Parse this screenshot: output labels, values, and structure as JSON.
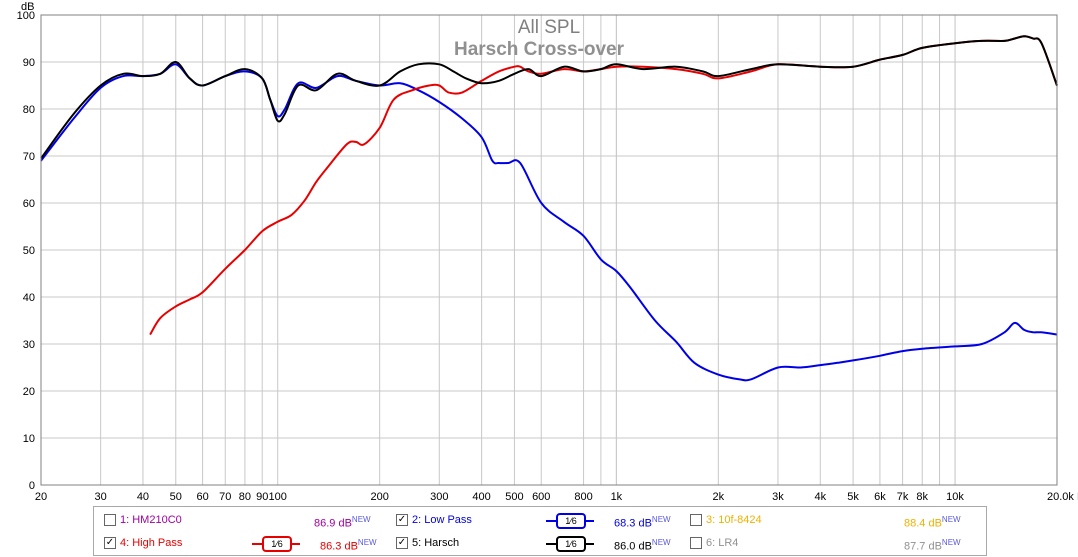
{
  "chart_data": {
    "type": "line",
    "title": "All SPL",
    "subtitle": "Harsch Cross-over",
    "ylabel": "dB",
    "xlabel": "Hz",
    "xscale": "log",
    "xlim": [
      20,
      20000
    ],
    "ylim": [
      0,
      100
    ],
    "grid": true,
    "yticks": [
      0,
      10,
      20,
      30,
      40,
      50,
      60,
      70,
      80,
      90,
      100
    ],
    "xticks": [
      {
        "v": 20,
        "label": "20"
      },
      {
        "v": 30,
        "label": "30"
      },
      {
        "v": 40,
        "label": "40"
      },
      {
        "v": 50,
        "label": "50"
      },
      {
        "v": 60,
        "label": "60"
      },
      {
        "v": 70,
        "label": "70"
      },
      {
        "v": 80,
        "label": "80"
      },
      {
        "v": 90,
        "label": "90"
      },
      {
        "v": 100,
        "label": "100"
      },
      {
        "v": 200,
        "label": "200"
      },
      {
        "v": 300,
        "label": "300"
      },
      {
        "v": 400,
        "label": "400"
      },
      {
        "v": 500,
        "label": "500"
      },
      {
        "v": 600,
        "label": "600"
      },
      {
        "v": 800,
        "label": "800"
      },
      {
        "v": 1000,
        "label": "1k"
      },
      {
        "v": 2000,
        "label": "2k"
      },
      {
        "v": 3000,
        "label": "3k"
      },
      {
        "v": 4000,
        "label": "4k"
      },
      {
        "v": 5000,
        "label": "5k"
      },
      {
        "v": 6000,
        "label": "6k"
      },
      {
        "v": 7000,
        "label": "7k"
      },
      {
        "v": 8000,
        "label": "8k"
      },
      {
        "v": 10000,
        "label": "10k"
      },
      {
        "v": 20000,
        "label": "20.0k Hz"
      }
    ],
    "minor_xgrid": [
      900,
      1000,
      9000,
      10000
    ],
    "series": [
      {
        "name": "Low Pass",
        "color": "#0000e8",
        "x": [
          20,
          25,
          30,
          35,
          40,
          45,
          50,
          55,
          60,
          70,
          80,
          90,
          95,
          100,
          105,
          115,
          130,
          150,
          170,
          200,
          230,
          260,
          300,
          350,
          400,
          430,
          450,
          480,
          520,
          600,
          700,
          800,
          900,
          1000,
          1100,
          1300,
          1500,
          1700,
          2000,
          2300,
          2500,
          3000,
          3500,
          4000,
          4500,
          5000,
          6000,
          7000,
          8000,
          10000,
          12000,
          14000,
          15000,
          16000,
          17000,
          18000,
          20000
        ],
        "y": [
          69,
          78,
          84.5,
          87,
          87,
          87.5,
          89.5,
          86.5,
          85,
          87,
          88,
          86.5,
          82,
          78.5,
          80,
          85.5,
          84.5,
          87,
          86,
          85,
          85.5,
          84,
          81.5,
          78,
          74,
          69,
          68.5,
          68.5,
          68.5,
          60,
          56,
          53,
          48,
          45.5,
          42,
          35,
          30.5,
          26,
          23.5,
          22.5,
          22.5,
          25,
          25,
          25.5,
          26,
          26.5,
          27.5,
          28.5,
          29,
          29.5,
          30,
          32.5,
          34.5,
          33,
          32.5,
          32.5,
          32
        ]
      },
      {
        "name": "High Pass",
        "color": "#e80000",
        "x": [
          42,
          45,
          50,
          55,
          60,
          70,
          80,
          90,
          100,
          110,
          120,
          130,
          140,
          160,
          170,
          180,
          200,
          220,
          250,
          280,
          300,
          320,
          350,
          400,
          450,
          500,
          520,
          550,
          600,
          700,
          800,
          900,
          1000,
          1200,
          1500,
          1800,
          2000,
          2500,
          3000,
          4000,
          5000,
          6000,
          7000,
          8000,
          10000,
          12000,
          14000,
          15000,
          16000,
          17000,
          18000,
          20000
        ],
        "y": [
          32,
          35.5,
          38,
          39.5,
          41,
          46,
          50,
          54,
          56,
          57.5,
          60.5,
          64.5,
          67.5,
          72.5,
          73,
          72.5,
          76,
          82,
          84,
          85,
          85,
          83.5,
          83.5,
          86,
          88,
          89,
          89,
          88,
          87.5,
          88.5,
          88,
          88.5,
          89,
          89,
          88.5,
          87.5,
          86.5,
          88,
          89.5,
          89,
          89,
          90.5,
          91.5,
          93,
          94,
          94.5,
          94.5,
          95,
          95.5,
          95,
          94,
          85
        ]
      },
      {
        "name": "Harsch",
        "color": "#000000",
        "x": [
          20,
          25,
          30,
          35,
          40,
          45,
          50,
          55,
          60,
          70,
          80,
          90,
          95,
          100,
          105,
          115,
          130,
          150,
          170,
          200,
          230,
          260,
          300,
          330,
          360,
          400,
          450,
          500,
          550,
          600,
          700,
          800,
          900,
          1000,
          1200,
          1500,
          1800,
          2000,
          2500,
          3000,
          4000,
          5000,
          6000,
          7000,
          8000,
          10000,
          12000,
          14000,
          15000,
          16000,
          17000,
          18000,
          20000
        ],
        "y": [
          69.5,
          79,
          85,
          87.5,
          87,
          87.5,
          90,
          86.5,
          85,
          87,
          88.5,
          86.5,
          82,
          77.5,
          79,
          85,
          84,
          87.5,
          86,
          85,
          88,
          89.5,
          89.5,
          88,
          86.5,
          85.5,
          86,
          87.5,
          88.5,
          87,
          89,
          88,
          88.5,
          89.5,
          88.5,
          89,
          88,
          87,
          88.5,
          89.5,
          89,
          89,
          90.5,
          91.5,
          93,
          94,
          94.5,
          94.5,
          95,
          95.5,
          95,
          94,
          85
        ]
      }
    ]
  },
  "legend": {
    "row1": {
      "a": {
        "label": "1: HM210C0",
        "value": "86.9 dB",
        "new": "NEW",
        "color": "#a000a0",
        "checked": ""
      },
      "b": {
        "label": "2: Low Pass",
        "value": "68.3 dB",
        "new": "NEW",
        "color": "#0000e8",
        "checked": "✓",
        "smooth": "1⁄6"
      },
      "c": {
        "label": "3: 10f-8424",
        "value": "88.4 dB",
        "new": "NEW",
        "color": "#f0b000",
        "checked": ""
      }
    },
    "row2": {
      "a": {
        "label": "4: High Pass",
        "value": "86.3 dB",
        "new": "NEW",
        "color": "#e80000",
        "checked": "✓",
        "smooth": "1⁄6"
      },
      "b": {
        "label": "5: Harsch",
        "value": "86.0 dB",
        "new": "NEW",
        "color": "#000000",
        "checked": "✓",
        "smooth": "1⁄6"
      },
      "c": {
        "label": "6: LR4",
        "value": "87.7 dB",
        "new": "NEW",
        "color": "#909090",
        "checked": ""
      }
    }
  }
}
